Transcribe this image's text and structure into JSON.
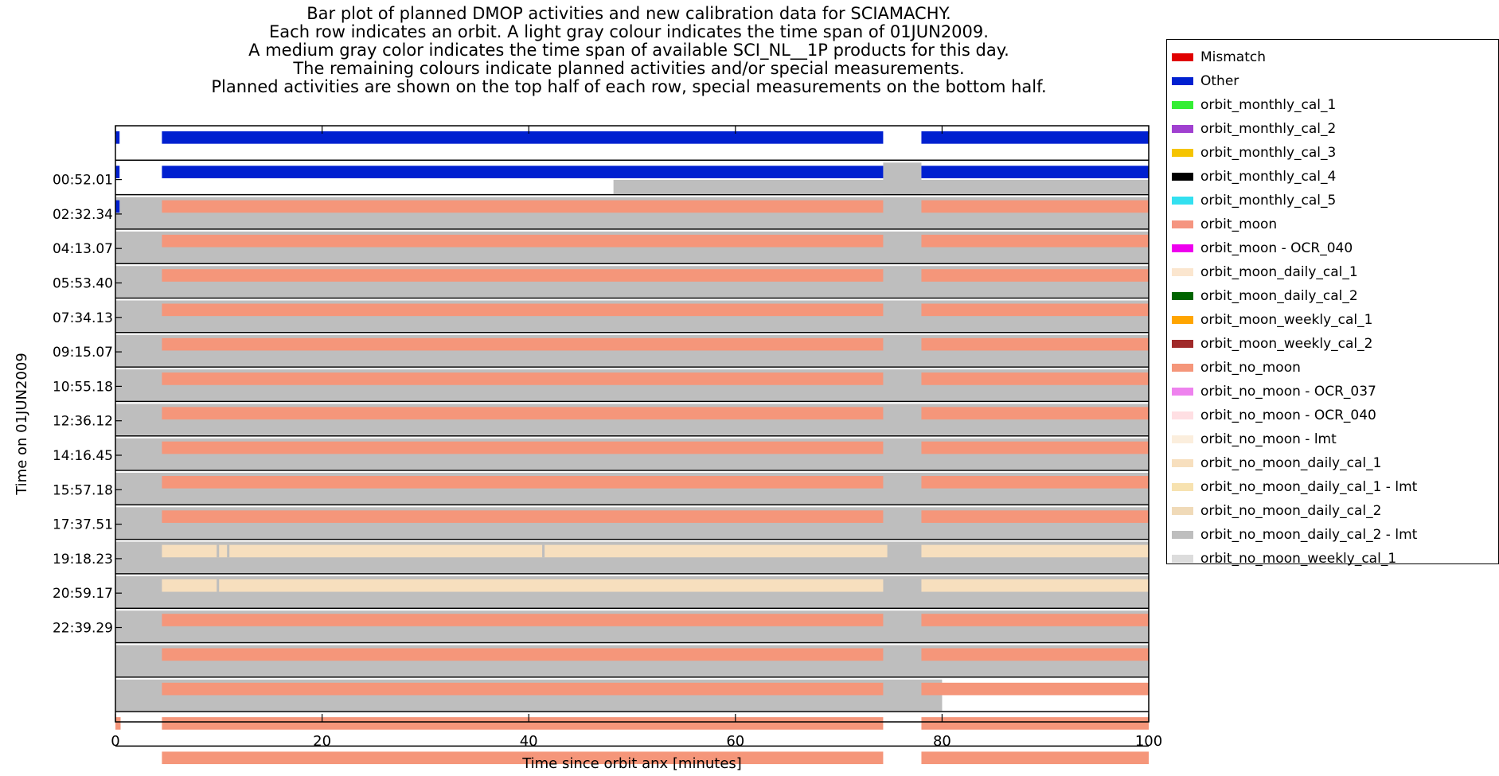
{
  "title_lines": [
    "Bar plot of planned DMOP activities and new calibration data for SCIAMACHY.",
    "Each row indicates an orbit. A light gray colour indicates the time span of 01JUN2009.",
    "A medium gray color indicates the time span of available SCI_NL__1P products for this day.",
    "The remaining colours indicate planned activities and/or special measurements.",
    "Planned activities are shown on the top half of each row, special measurements on the bottom half."
  ],
  "colors": {
    "Mismatch": "#e00000",
    "Other": "#0020d0",
    "orbit_monthly_cal_1": "#33ee33",
    "orbit_monthly_cal_2": "#a040d0",
    "orbit_monthly_cal_3": "#f5c400",
    "orbit_monthly_cal_4": "#000000",
    "orbit_monthly_cal_5": "#33e0f0",
    "orbit_moon": "#f59580",
    "orbit_moon - OCR_040": "#ee00ee",
    "orbit_moon_daily_cal_1": "#fbe6cf",
    "orbit_moon_daily_cal_2": "#006400",
    "orbit_moon_weekly_cal_1": "#ffa500",
    "orbit_moon_weekly_cal_2": "#a02a2a",
    "orbit_no_moon": "#f5967a",
    "orbit_no_moon - OCR_037": "#ee82ee",
    "orbit_no_moon - OCR_040": "#ffdfe3",
    "orbit_no_moon - lmt": "#fbeedd",
    "orbit_no_moon_daily_cal_1": "#f7dfbe",
    "orbit_no_moon_daily_cal_1 - lmt": "#f7e2b0",
    "orbit_no_moon_daily_cal_2": "#f0dab8",
    "orbit_no_moon_daily_cal_2 - lmt": "#bebebe",
    "orbit_no_moon_weekly_cal_1": "#dcdcdc",
    "day_span": "#dcdcdc",
    "product_span": "#bebebe"
  },
  "legend": [
    "Mismatch",
    "Other",
    "orbit_monthly_cal_1",
    "orbit_monthly_cal_2",
    "orbit_monthly_cal_3",
    "orbit_monthly_cal_4",
    "orbit_monthly_cal_5",
    "orbit_moon",
    "orbit_moon - OCR_040",
    "orbit_moon_daily_cal_1",
    "orbit_moon_daily_cal_2",
    "orbit_moon_weekly_cal_1",
    "orbit_moon_weekly_cal_2",
    "orbit_no_moon",
    "orbit_no_moon - OCR_037",
    "orbit_no_moon - OCR_040",
    "orbit_no_moon - lmt",
    "orbit_no_moon_daily_cal_1",
    "orbit_no_moon_daily_cal_1 - lmt",
    "orbit_no_moon_daily_cal_2",
    "orbit_no_moon_daily_cal_2 - lmt",
    "orbit_no_moon_weekly_cal_1"
  ],
  "chart_data": {
    "type": "bar",
    "xlabel": "Time since orbit anx [minutes]",
    "ylabel": "Time on 01JUN2009",
    "xlim": [
      0,
      100
    ],
    "xticks": [
      0,
      20,
      40,
      60,
      80,
      100
    ],
    "ytick_labels": [
      "00:52.01",
      "02:32.34",
      "04:13.07",
      "05:53.40",
      "07:34.13",
      "09:15.07",
      "10:55.18",
      "12:36.12",
      "14:16.45",
      "15:57.18",
      "17:37.51",
      "19:18.23",
      "20:59.17",
      "22:39.29"
    ],
    "rows": [
      {
        "top": [
          {
            "start": 0,
            "end": 0.4,
            "activity": "Other"
          },
          {
            "start": 4.5,
            "end": 74.3,
            "activity": "Other"
          },
          {
            "start": 78,
            "end": 100,
            "activity": "Other"
          }
        ],
        "bottom": []
      },
      {
        "top": [
          {
            "start": 0,
            "end": 0.4,
            "activity": "Other"
          },
          {
            "start": 4.5,
            "end": 74.3,
            "activity": "Other"
          },
          {
            "start": 78,
            "end": 100,
            "activity": "Other"
          }
        ],
        "bottom": [
          {
            "start": 48.2,
            "end": 100,
            "activity": "product_span"
          }
        ],
        "gray": [
          {
            "start": 74.3,
            "end": 78
          }
        ]
      },
      {
        "top": [
          {
            "start": 0,
            "end": 0.4,
            "activity": "Other"
          },
          {
            "start": 4.5,
            "end": 74.3,
            "activity": "orbit_no_moon"
          },
          {
            "start": 78,
            "end": 100,
            "activity": "orbit_no_moon"
          }
        ],
        "bottom": [
          {
            "start": 0,
            "end": 100,
            "activity": "product_span"
          }
        ],
        "gray": [
          {
            "start": 0,
            "end": 100
          }
        ]
      },
      {
        "top": [
          {
            "start": 4.5,
            "end": 74.3,
            "activity": "orbit_no_moon"
          },
          {
            "start": 78,
            "end": 100,
            "activity": "orbit_no_moon"
          }
        ],
        "bottom": [
          {
            "start": 0,
            "end": 100,
            "activity": "product_span"
          }
        ],
        "gray": [
          {
            "start": 0,
            "end": 100
          }
        ]
      },
      {
        "top": [
          {
            "start": 4.5,
            "end": 74.3,
            "activity": "orbit_no_moon"
          },
          {
            "start": 78,
            "end": 100,
            "activity": "orbit_no_moon"
          }
        ],
        "bottom": [
          {
            "start": 0,
            "end": 100,
            "activity": "product_span"
          }
        ],
        "gray": [
          {
            "start": 0,
            "end": 100
          }
        ]
      },
      {
        "top": [
          {
            "start": 4.5,
            "end": 74.3,
            "activity": "orbit_no_moon"
          },
          {
            "start": 78,
            "end": 100,
            "activity": "orbit_no_moon"
          }
        ],
        "bottom": [
          {
            "start": 0,
            "end": 100,
            "activity": "product_span"
          }
        ],
        "gray": [
          {
            "start": 0,
            "end": 100
          }
        ]
      },
      {
        "top": [
          {
            "start": 4.5,
            "end": 74.3,
            "activity": "orbit_no_moon"
          },
          {
            "start": 78,
            "end": 100,
            "activity": "orbit_no_moon"
          }
        ],
        "bottom": [
          {
            "start": 0,
            "end": 100,
            "activity": "product_span"
          }
        ],
        "gray": [
          {
            "start": 0,
            "end": 100
          }
        ]
      },
      {
        "top": [
          {
            "start": 4.5,
            "end": 74.3,
            "activity": "orbit_no_moon"
          },
          {
            "start": 78,
            "end": 100,
            "activity": "orbit_no_moon"
          }
        ],
        "bottom": [
          {
            "start": 0,
            "end": 100,
            "activity": "product_span"
          }
        ],
        "gray": [
          {
            "start": 0,
            "end": 100
          }
        ]
      },
      {
        "top": [
          {
            "start": 4.5,
            "end": 74.3,
            "activity": "orbit_no_moon"
          },
          {
            "start": 78,
            "end": 100,
            "activity": "orbit_no_moon"
          }
        ],
        "bottom": [
          {
            "start": 0,
            "end": 100,
            "activity": "product_span"
          }
        ],
        "gray": [
          {
            "start": 0,
            "end": 100
          }
        ]
      },
      {
        "top": [
          {
            "start": 4.5,
            "end": 74.3,
            "activity": "orbit_no_moon"
          },
          {
            "start": 78,
            "end": 100,
            "activity": "orbit_no_moon"
          }
        ],
        "bottom": [
          {
            "start": 0,
            "end": 100,
            "activity": "product_span"
          }
        ],
        "gray": [
          {
            "start": 0,
            "end": 100
          }
        ]
      },
      {
        "top": [
          {
            "start": 4.5,
            "end": 74.3,
            "activity": "orbit_no_moon"
          },
          {
            "start": 78,
            "end": 100,
            "activity": "orbit_no_moon"
          }
        ],
        "bottom": [
          {
            "start": 0,
            "end": 100,
            "activity": "product_span"
          }
        ],
        "gray": [
          {
            "start": 0,
            "end": 100
          }
        ]
      },
      {
        "top": [
          {
            "start": 4.5,
            "end": 74.3,
            "activity": "orbit_no_moon"
          },
          {
            "start": 78,
            "end": 100,
            "activity": "orbit_no_moon"
          }
        ],
        "bottom": [
          {
            "start": 0,
            "end": 100,
            "activity": "product_span"
          }
        ],
        "gray": [
          {
            "start": 0,
            "end": 100
          }
        ]
      },
      {
        "top": [
          {
            "start": 4.5,
            "end": 74.7,
            "activity": "orbit_no_moon_daily_cal_1"
          },
          {
            "start": 78,
            "end": 100,
            "activity": "orbit_no_moon_daily_cal_1"
          }
        ],
        "bottom": [
          {
            "start": 0,
            "end": 100,
            "activity": "product_span"
          }
        ],
        "gray": [
          {
            "start": 0,
            "end": 100
          }
        ],
        "marks": [
          9.8,
          10.8,
          41.3
        ]
      },
      {
        "top": [
          {
            "start": 4.5,
            "end": 74.3,
            "activity": "orbit_no_moon_daily_cal_1"
          },
          {
            "start": 78,
            "end": 100,
            "activity": "orbit_no_moon_daily_cal_1"
          }
        ],
        "bottom": [
          {
            "start": 0,
            "end": 100,
            "activity": "product_span"
          }
        ],
        "gray": [
          {
            "start": 0,
            "end": 100
          }
        ],
        "marks": [
          9.8
        ]
      },
      {
        "top": [
          {
            "start": 4.5,
            "end": 74.3,
            "activity": "orbit_no_moon"
          },
          {
            "start": 78,
            "end": 100,
            "activity": "orbit_no_moon"
          }
        ],
        "bottom": [
          {
            "start": 0,
            "end": 100,
            "activity": "product_span"
          }
        ],
        "gray": [
          {
            "start": 0,
            "end": 100
          }
        ]
      },
      {
        "top": [
          {
            "start": 4.5,
            "end": 74.3,
            "activity": "orbit_no_moon"
          },
          {
            "start": 78,
            "end": 100,
            "activity": "orbit_no_moon"
          }
        ],
        "bottom": [
          {
            "start": 0,
            "end": 100,
            "activity": "product_span"
          }
        ],
        "gray": [
          {
            "start": 0,
            "end": 100
          }
        ]
      },
      {
        "top": [
          {
            "start": 4.5,
            "end": 74.3,
            "activity": "orbit_no_moon"
          },
          {
            "start": 78,
            "end": 100,
            "activity": "orbit_no_moon"
          }
        ],
        "bottom": [
          {
            "start": 0,
            "end": 80,
            "activity": "product_span"
          }
        ],
        "gray": [
          {
            "start": 0,
            "end": 80
          }
        ]
      },
      {
        "top": [
          {
            "start": 0,
            "end": 0.5,
            "activity": "orbit_no_moon"
          },
          {
            "start": 4.5,
            "end": 74.3,
            "activity": "orbit_no_moon"
          },
          {
            "start": 78,
            "end": 100,
            "activity": "orbit_no_moon"
          }
        ],
        "bottom": []
      },
      {
        "top": [
          {
            "start": 4.5,
            "end": 74.3,
            "activity": "orbit_no_moon"
          },
          {
            "start": 78,
            "end": 100,
            "activity": "orbit_no_moon"
          }
        ],
        "bottom": []
      }
    ]
  }
}
